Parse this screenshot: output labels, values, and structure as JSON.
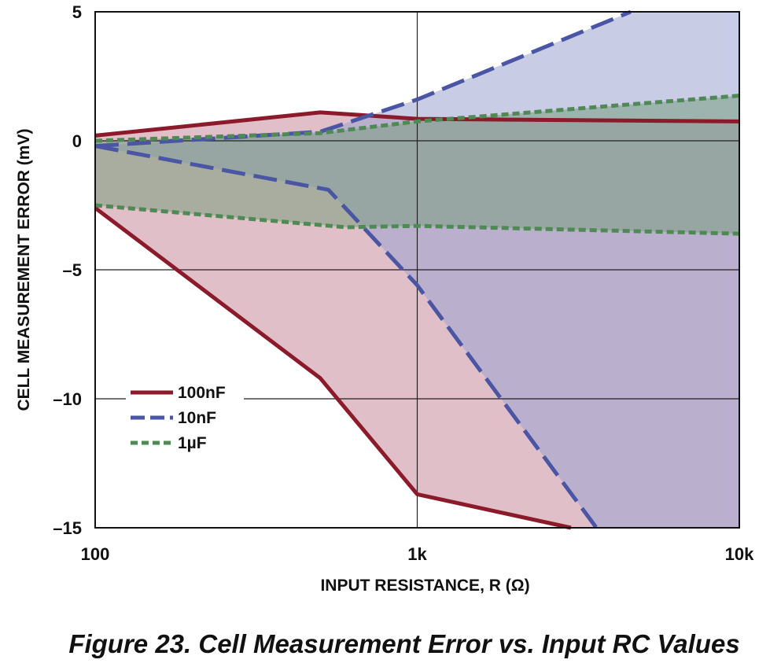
{
  "chart_data": {
    "type": "area",
    "xscale": "log",
    "xlim": [
      100,
      10000
    ],
    "ylim": [
      -15,
      5
    ],
    "x_ticks": [
      {
        "value": 100,
        "label": "100"
      },
      {
        "value": 1000,
        "label": "1k"
      },
      {
        "value": 10000,
        "label": "10k"
      }
    ],
    "y_ticks": [
      {
        "value": 5,
        "label": "5"
      },
      {
        "value": 0,
        "label": "0"
      },
      {
        "value": -5,
        "label": "–5"
      },
      {
        "value": -10,
        "label": "–10"
      },
      {
        "value": -15,
        "label": "–15"
      }
    ],
    "xlabel": "INPUT RESISTANCE, R (Ω)",
    "ylabel": "CELL MEASUREMENT ERROR (mV)",
    "caption": "Figure 23. Cell Measurement Error vs. Input RC Values",
    "grid": true,
    "legend_position": "lower-left",
    "series": [
      {
        "name": "100nF",
        "color": "#8b1a2b",
        "fill": "#c98a9a",
        "line_style": "solid",
        "upper": {
          "x": [
            100,
            500,
            1000,
            10000
          ],
          "y": [
            0.2,
            1.1,
            0.85,
            0.75
          ]
        },
        "lower": {
          "x": [
            100,
            500,
            1000,
            3000
          ],
          "y": [
            -2.6,
            -9.2,
            -13.7,
            -15.0
          ]
        }
      },
      {
        "name": "10nF",
        "color": "#4a56a4",
        "fill": "#9aa2d0",
        "line_style": "dashed",
        "upper": {
          "x": [
            100,
            500,
            1000,
            4600
          ],
          "y": [
            -0.2,
            0.35,
            1.6,
            5.0
          ]
        },
        "lower": {
          "x": [
            100,
            530,
            1000,
            3600
          ],
          "y": [
            -0.2,
            -1.9,
            -5.6,
            -15.0
          ]
        }
      },
      {
        "name": "1µF",
        "color": "#4f8a55",
        "fill": "#7a9f7f",
        "line_style": "dotted",
        "upper": {
          "x": [
            100,
            500,
            1000,
            10000
          ],
          "y": [
            0.0,
            0.3,
            0.75,
            1.75
          ]
        },
        "lower": {
          "x": [
            100,
            600,
            1000,
            10000
          ],
          "y": [
            -2.5,
            -3.35,
            -3.3,
            -3.6
          ]
        }
      }
    ]
  }
}
